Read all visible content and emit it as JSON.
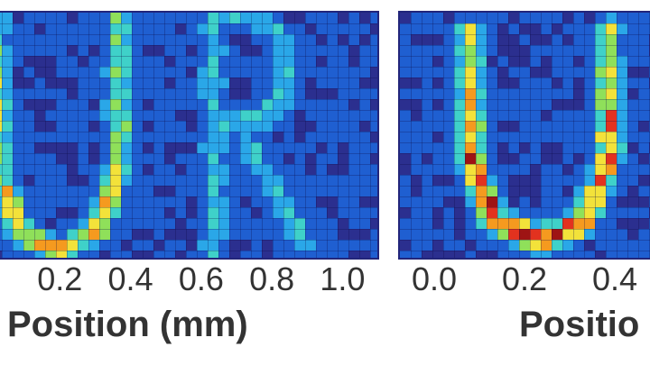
{
  "chart_data": [
    {
      "type": "heatmap",
      "xlabel": "Position (mm)",
      "xticks": [
        "0.2",
        "0.4",
        "0.6",
        "0.8",
        "1.0"
      ],
      "xlim": [
        0.0,
        1.05
      ],
      "ylim": [
        0.0,
        0.6
      ],
      "colormap": [
        "#2b2f8f",
        "#1f5fd1",
        "#2aa7e8",
        "#3fd1c9",
        "#8fe05a",
        "#f3e23a",
        "#f59a1f",
        "#e2321f",
        "#9e1414"
      ],
      "shapes": [
        {
          "letter": "U",
          "x": [
            0.0,
            0.38
          ],
          "y": [
            0.02,
            0.6
          ],
          "intensity": 0.65
        },
        {
          "letter": "R",
          "x": [
            0.6,
            0.9
          ],
          "y": [
            0.02,
            0.6
          ],
          "intensity": 0.32
        }
      ]
    },
    {
      "type": "heatmap",
      "xlabel": "Positio",
      "xticks": [
        "0.0",
        "0.2",
        "0.4"
      ],
      "xlim": [
        -0.05,
        0.52
      ],
      "ylim": [
        0.0,
        0.6
      ],
      "colormap": [
        "#2b2f8f",
        "#1f5fd1",
        "#2aa7e8",
        "#3fd1c9",
        "#8fe05a",
        "#f3e23a",
        "#f59a1f",
        "#e2321f",
        "#9e1414"
      ],
      "shapes": [
        {
          "letter": "U",
          "x": [
            0.06,
            0.4
          ],
          "y": [
            0.05,
            0.56
          ],
          "intensity": 0.95
        }
      ]
    }
  ]
}
